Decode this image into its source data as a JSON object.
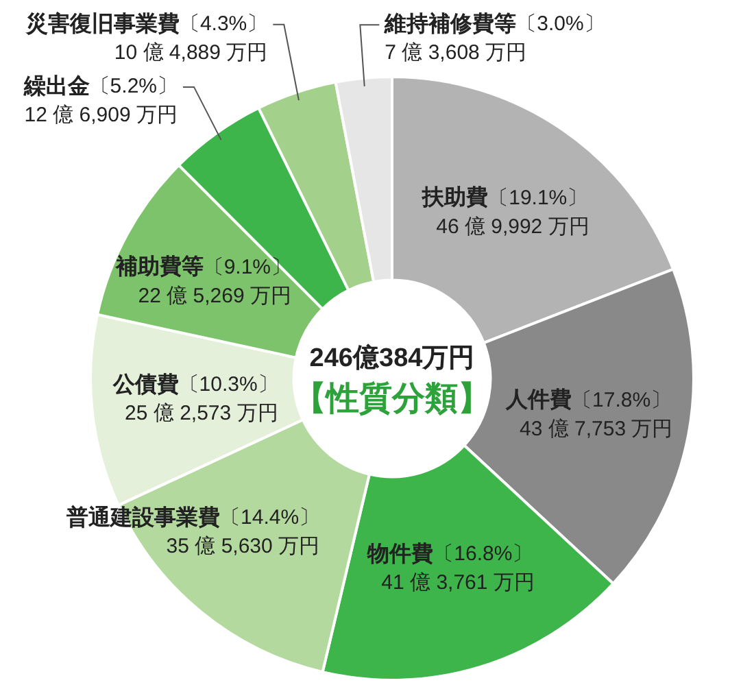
{
  "chart_data": {
    "type": "donut",
    "title": "246億384万円",
    "subtitle": "【性質分類】",
    "categories": [
      "扶助費〔19.1%〕\n46 億 9,992 万円",
      "人件費〔17.8%〕\n43 億 7,753 万円",
      "物件費〔16.8%〕\n41 億 3,761 万円",
      "普通建設事業費〔14.4%〕\n35 億 5,630 万円",
      "公債費〔10.3%〕\n25 億 2,573 万円",
      "補助費等〔9.1%〕\n22 億 5,269 万円",
      "繰出金〔5.2%〕\n12 億 6,909 万円",
      "災害復旧事業費〔4.3%〕\n10 億 4,889 万円",
      "維持補修費等〔3.0%〕\n7 億 3,608 万円"
    ],
    "values": [
      19.1,
      17.8,
      16.8,
      14.4,
      10.3,
      9.1,
      5.2,
      4.3,
      3.0
    ],
    "colors": [
      "#b3b3b3",
      "#898989",
      "#3db54a",
      "#b4d99f",
      "#e4f0da",
      "#7dc36b",
      "#3db54a",
      "#a3d08a",
      "#e6e6e6"
    ],
    "legend": false
  }
}
